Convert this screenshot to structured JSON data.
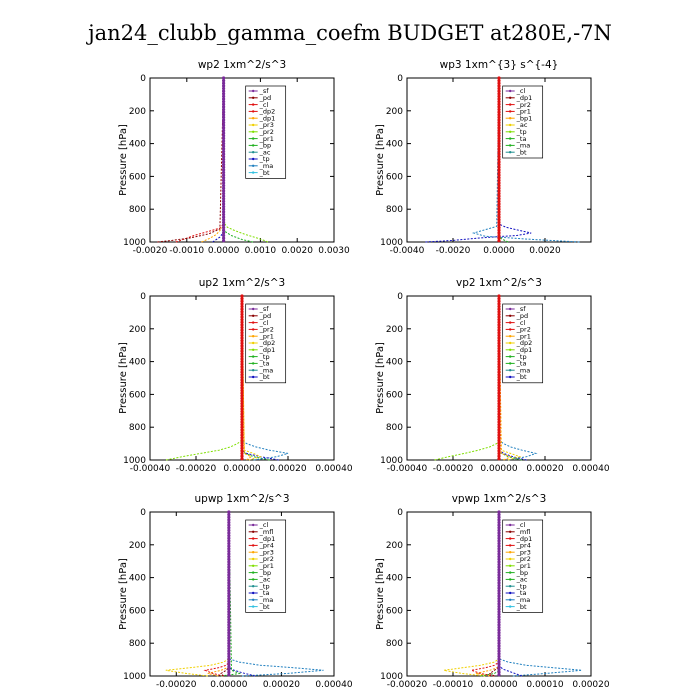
{
  "figure": {
    "title": "jan24_clubb_gamma_coefm  BUDGET at280E,-7N",
    "colors": {
      "purple": "#7a2b9a",
      "darkred": "#8b0000",
      "red": "#e01010",
      "orange": "#ffa500",
      "gold": "#f0d000",
      "lime": "#7fdf00",
      "green": "#20b020",
      "teal": "#209090",
      "blue": "#1010c0",
      "sky": "#1f7fbf",
      "cyan": "#30c0e0"
    }
  },
  "chart_data": [
    {
      "type": "line",
      "id": "wp2",
      "title": "wp2  1xm^2/s^3",
      "ylabel": "Pressure [hPa]",
      "ylim": [
        1000,
        0
      ],
      "yticks": [
        0,
        200,
        400,
        600,
        800,
        1000
      ],
      "xlim": [
        -0.002,
        0.003
      ],
      "xticks": [
        -0.002,
        -0.001,
        0.0,
        0.001,
        0.002,
        0.003
      ],
      "xtick_labels": [
        "-0.0020",
        "-0.0010",
        "0.0000",
        "0.0010",
        "0.0020",
        "0.0030"
      ],
      "legend": [
        "_sf",
        "_pd",
        "_cl",
        "_dp2",
        "_dp1",
        "_pr3",
        "_pr2",
        "_pr1",
        "_bp",
        "_ac",
        "_tp",
        "_ma",
        "_bt"
      ],
      "series": [
        {
          "name": "_dp1",
          "color": "red",
          "p": [
            1000,
            985,
            960,
            935,
            915,
            890,
            860,
            0
          ],
          "v": [
            -0.0013,
            -0.0011,
            -0.0008,
            -0.0004,
            -0.0001,
            0,
            0,
            0
          ]
        },
        {
          "name": "_pr1",
          "color": "orange",
          "p": [
            1000,
            980,
            955,
            930,
            900,
            0
          ],
          "v": [
            -0.0006,
            -0.0004,
            -0.0002,
            -0.0001,
            0,
            0
          ]
        },
        {
          "name": "_dp2",
          "color": "darkred",
          "p": [
            1000,
            990,
            975,
            950,
            920,
            0
          ],
          "v": [
            -0.0018,
            -0.0014,
            -0.0009,
            -0.0004,
            -0.0001,
            0
          ]
        },
        {
          "name": "_bp",
          "color": "lime",
          "p": [
            1000,
            990,
            975,
            955,
            930,
            910,
            880,
            0
          ],
          "v": [
            0.0012,
            0.0011,
            0.0009,
            0.0006,
            0.0003,
            0.0001,
            0,
            0
          ]
        },
        {
          "name": "_ac",
          "color": "green",
          "p": [
            1000,
            985,
            960,
            930,
            0
          ],
          "v": [
            0.0008,
            0.0005,
            0.0002,
            0,
            0
          ]
        },
        {
          "name": "_tp",
          "color": "blue",
          "p": [
            1000,
            970,
            940,
            0
          ],
          "v": [
            -0.0003,
            -0.0001,
            0,
            0
          ]
        },
        {
          "name": "_pd",
          "color": "purple",
          "p": [
            1000,
            0
          ],
          "v": [
            0,
            0
          ],
          "markers": true
        }
      ]
    },
    {
      "type": "line",
      "id": "wp3",
      "title": "wp3  1xm^{3} s^{-4}",
      "ylabel": "Pressure [hPa]",
      "ylim": [
        1000,
        0
      ],
      "yticks": [
        0,
        200,
        400,
        600,
        800,
        1000
      ],
      "xlim": [
        -0.004,
        0.004
      ],
      "xticks": [
        -0.004,
        -0.002,
        0.0,
        0.002
      ],
      "xtick_labels": [
        "-0.0040",
        "-0.0020",
        "0.0000",
        "0.0020"
      ],
      "legend": [
        "_cl",
        "_dp1",
        "_pr2",
        "_pr1",
        "_bp1",
        "_ac",
        "_tp",
        "_ta",
        "_ma",
        "_bt"
      ],
      "series": [
        {
          "name": "_tp",
          "color": "blue",
          "p": [
            1000,
            990,
            975,
            960,
            945,
            930,
            910,
            890,
            0
          ],
          "v": [
            -0.0032,
            -0.002,
            -0.0008,
            0.0008,
            0.0014,
            0.0009,
            0.0003,
            0,
            0
          ]
        },
        {
          "name": "_ta",
          "color": "sky",
          "p": [
            1000,
            985,
            965,
            945,
            925,
            905,
            0
          ],
          "v": [
            0.0035,
            0.0015,
            -0.0006,
            -0.0011,
            -0.0006,
            -0.0001,
            0
          ]
        },
        {
          "name": "_ac",
          "color": "green",
          "p": [
            1000,
            980,
            960,
            0
          ],
          "v": [
            0.0004,
            0.0001,
            0,
            0
          ]
        },
        {
          "name": "_dp1",
          "color": "red",
          "p": [
            1000,
            0
          ],
          "v": [
            0,
            0
          ],
          "markers": true
        }
      ]
    },
    {
      "type": "line",
      "id": "up2",
      "title": "up2  1xm^2/s^3",
      "ylabel": "Pressure [hPa]",
      "ylim": [
        1000,
        0
      ],
      "yticks": [
        0,
        200,
        400,
        600,
        800,
        1000
      ],
      "xlim": [
        -0.0004,
        0.0004
      ],
      "xticks": [
        -0.0004,
        -0.0002,
        0.0,
        0.0002,
        0.0004
      ],
      "xtick_labels": [
        "-0.00040",
        "-0.00020",
        "0.00000",
        "0.00020",
        "0.00040"
      ],
      "legend": [
        "_sf",
        "_pd",
        "_cl",
        "_pr2",
        "_pr1",
        "_dp2",
        "_dp1",
        "_tp",
        "_ta",
        "_ma",
        "_bt"
      ],
      "series": [
        {
          "name": "_dp1",
          "color": "lime",
          "p": [
            1000,
            980,
            960,
            940,
            920,
            900,
            880,
            0
          ],
          "v": [
            -0.00033,
            -0.00026,
            -0.00018,
            -0.0001,
            -5e-05,
            -2e-05,
            0,
            0
          ]
        },
        {
          "name": "_dp2",
          "color": "green",
          "p": [
            1000,
            980,
            950,
            0
          ],
          "v": [
            0.00012,
            5e-05,
            0,
            0
          ]
        },
        {
          "name": "_tp",
          "color": "sky",
          "p": [
            1000,
            980,
            960,
            940,
            920,
            900,
            880,
            0
          ],
          "v": [
            5e-05,
            0.00015,
            0.0002,
            0.00012,
            6e-05,
            2e-05,
            0,
            0
          ]
        },
        {
          "name": "_ta",
          "color": "blue",
          "p": [
            1000,
            980,
            960,
            940,
            0
          ],
          "v": [
            0.00016,
            8e-05,
            2e-05,
            0,
            0
          ]
        },
        {
          "name": "_pr1",
          "color": "gold",
          "p": [
            1000,
            980,
            960,
            940,
            0
          ],
          "v": [
            3e-05,
            8e-05,
            5e-05,
            1e-05,
            0
          ]
        },
        {
          "name": "_pr2",
          "color": "orange",
          "p": [
            1000,
            980,
            960,
            0
          ],
          "v": [
            2e-05,
            4e-05,
            1e-05,
            0
          ]
        },
        {
          "name": "_cl",
          "color": "red",
          "p": [
            1000,
            0
          ],
          "v": [
            0,
            0
          ],
          "markers": true
        }
      ]
    },
    {
      "type": "line",
      "id": "vp2",
      "title": "vp2  1xm^2/s^3",
      "ylabel": "Pressure [hPa]",
      "ylim": [
        1000,
        0
      ],
      "yticks": [
        0,
        200,
        400,
        600,
        800,
        1000
      ],
      "xlim": [
        -0.0004,
        0.0004
      ],
      "xticks": [
        -0.0004,
        -0.0002,
        0.0,
        0.0002,
        0.0004
      ],
      "xtick_labels": [
        "-0.00040",
        "-0.00020",
        "0.00000",
        "0.00020",
        "0.00040"
      ],
      "legend": [
        "_sf",
        "_pd",
        "_cl",
        "_pr2",
        "_pr1",
        "_dp2",
        "_dp1",
        "_tp",
        "_ta",
        "_ma",
        "_bt"
      ],
      "series": [
        {
          "name": "_dp1",
          "color": "lime",
          "p": [
            1000,
            980,
            960,
            940,
            920,
            900,
            880,
            0
          ],
          "v": [
            -0.00028,
            -0.00022,
            -0.00015,
            -9e-05,
            -4e-05,
            -1e-05,
            0,
            0
          ]
        },
        {
          "name": "_dp2",
          "color": "green",
          "p": [
            1000,
            980,
            950,
            0
          ],
          "v": [
            0.0001,
            4e-05,
            0,
            0
          ]
        },
        {
          "name": "_tp",
          "color": "sky",
          "p": [
            1000,
            980,
            960,
            940,
            920,
            900,
            880,
            0
          ],
          "v": [
            4e-05,
            0.00012,
            0.00016,
            0.0001,
            5e-05,
            2e-05,
            0,
            0
          ]
        },
        {
          "name": "_ta",
          "color": "blue",
          "p": [
            1000,
            980,
            960,
            940,
            0
          ],
          "v": [
            0.00012,
            6e-05,
            2e-05,
            0,
            0
          ]
        },
        {
          "name": "_pr1",
          "color": "gold",
          "p": [
            1000,
            980,
            960,
            940,
            0
          ],
          "v": [
            4e-05,
            9e-05,
            5e-05,
            1e-05,
            0
          ]
        },
        {
          "name": "_pr2",
          "color": "orange",
          "p": [
            1000,
            980,
            960,
            0
          ],
          "v": [
            2e-05,
            5e-05,
            1e-05,
            0
          ]
        },
        {
          "name": "_cl",
          "color": "red",
          "p": [
            1000,
            0
          ],
          "v": [
            0,
            0
          ],
          "markers": true
        }
      ]
    },
    {
      "type": "line",
      "id": "upwp",
      "title": "upwp  1xm^2/s^3",
      "ylabel": "Pressure [hPa]",
      "ylim": [
        1000,
        0
      ],
      "yticks": [
        0,
        200,
        400,
        600,
        800,
        1000
      ],
      "xlim": [
        -0.0003,
        0.0004
      ],
      "xticks": [
        -0.0002,
        0.0,
        0.0002,
        0.0004
      ],
      "xtick_labels": [
        "-0.00020",
        "0.00000",
        "0.00020",
        "0.00040"
      ],
      "legend": [
        "_cl",
        "_mfl",
        "_dp1",
        "_pr4",
        "_pr3",
        "_pr2",
        "_pr1",
        "_bp",
        "_ac",
        "_tp",
        "_ta",
        "_ma",
        "_bt"
      ],
      "series": [
        {
          "name": "_tp",
          "color": "sky",
          "p": [
            1000,
            985,
            965,
            950,
            935,
            915,
            895,
            0
          ],
          "v": [
            5e-05,
            0.00022,
            0.00036,
            0.00025,
            0.00012,
            4e-05,
            0,
            0
          ]
        },
        {
          "name": "_ta",
          "color": "blue",
          "p": [
            1000,
            980,
            960,
            940,
            0
          ],
          "v": [
            0.0001,
            5e-05,
            1e-05,
            0,
            0
          ]
        },
        {
          "name": "_pr1",
          "color": "gold",
          "p": [
            1000,
            985,
            965,
            950,
            935,
            915,
            895,
            0
          ],
          "v": [
            -8e-05,
            -0.00016,
            -0.00024,
            -0.00015,
            -7e-05,
            -2e-05,
            0,
            0
          ]
        },
        {
          "name": "_pr2",
          "color": "orange",
          "p": [
            1000,
            985,
            965,
            945,
            0
          ],
          "v": [
            -4e-05,
            -8e-05,
            -3e-05,
            0,
            0
          ]
        },
        {
          "name": "_bp",
          "color": "green",
          "p": [
            1000,
            985,
            965,
            0
          ],
          "v": [
            -3e-05,
            4e-05,
            1e-05,
            0
          ]
        },
        {
          "name": "_pr3",
          "color": "red",
          "p": [
            1000,
            985,
            965,
            950,
            935,
            915,
            0
          ],
          "v": [
            -2e-05,
            -6e-05,
            -9e-05,
            -4e-05,
            -1e-05,
            0,
            0
          ]
        },
        {
          "name": "_dp1",
          "color": "darkred",
          "p": [
            1000,
            985,
            965,
            945,
            0
          ],
          "v": [
            -2e-05,
            -3e-05,
            -1e-05,
            0,
            0
          ]
        },
        {
          "name": "_cl",
          "color": "purple",
          "p": [
            1000,
            0
          ],
          "v": [
            0,
            0
          ],
          "markers": true
        }
      ]
    },
    {
      "type": "line",
      "id": "vpwp",
      "title": "vpwp  1xm^2/s^3",
      "ylabel": "Pressure [hPa]",
      "ylim": [
        1000,
        0
      ],
      "yticks": [
        0,
        200,
        400,
        600,
        800,
        1000
      ],
      "xlim": [
        -0.0002,
        0.0002
      ],
      "xticks": [
        -0.0002,
        -0.0001,
        0.0,
        0.0001,
        0.0002
      ],
      "xtick_labels": [
        "-0.00020",
        "-0.00010",
        "0.00000",
        "0.00010",
        "0.00020"
      ],
      "legend": [
        "_cl",
        "_mfl",
        "_dp1",
        "_pr4",
        "_pr3",
        "_pr2",
        "_pr1",
        "_bp",
        "_ac",
        "_tp",
        "_ta",
        "_ma",
        "_bt"
      ],
      "series": [
        {
          "name": "_tp",
          "color": "sky",
          "p": [
            1000,
            985,
            965,
            950,
            935,
            915,
            895,
            0
          ],
          "v": [
            3e-05,
            0.0001,
            0.00018,
            0.00012,
            6e-05,
            2e-05,
            0,
            0
          ]
        },
        {
          "name": "_ta",
          "color": "blue",
          "p": [
            1000,
            980,
            960,
            940,
            0
          ],
          "v": [
            5e-05,
            3e-05,
            1e-05,
            0,
            0
          ]
        },
        {
          "name": "_pr1",
          "color": "gold",
          "p": [
            1000,
            985,
            965,
            950,
            935,
            915,
            895,
            0
          ],
          "v": [
            -3e-05,
            -8e-05,
            -0.00012,
            -8e-05,
            -4e-05,
            -1e-05,
            0,
            0
          ]
        },
        {
          "name": "_pr2",
          "color": "orange",
          "p": [
            1000,
            985,
            965,
            945,
            0
          ],
          "v": [
            -2e-05,
            -5e-05,
            -2e-05,
            0,
            0
          ]
        },
        {
          "name": "_bp",
          "color": "green",
          "p": [
            1000,
            985,
            965,
            0
          ],
          "v": [
            -4e-05,
            -1e-05,
            0,
            0
          ]
        },
        {
          "name": "_pr3",
          "color": "red",
          "p": [
            1000,
            985,
            965,
            950,
            935,
            915,
            0
          ],
          "v": [
            -1e-05,
            -4e-05,
            -6e-05,
            -3e-05,
            -1e-05,
            0,
            0
          ]
        },
        {
          "name": "_dp1",
          "color": "darkred",
          "p": [
            1000,
            985,
            965,
            945,
            0
          ],
          "v": [
            -1e-05,
            -2e-05,
            -1e-05,
            0,
            0
          ]
        },
        {
          "name": "_cl",
          "color": "purple",
          "p": [
            1000,
            0
          ],
          "v": [
            0,
            0
          ],
          "markers": true
        }
      ]
    }
  ]
}
